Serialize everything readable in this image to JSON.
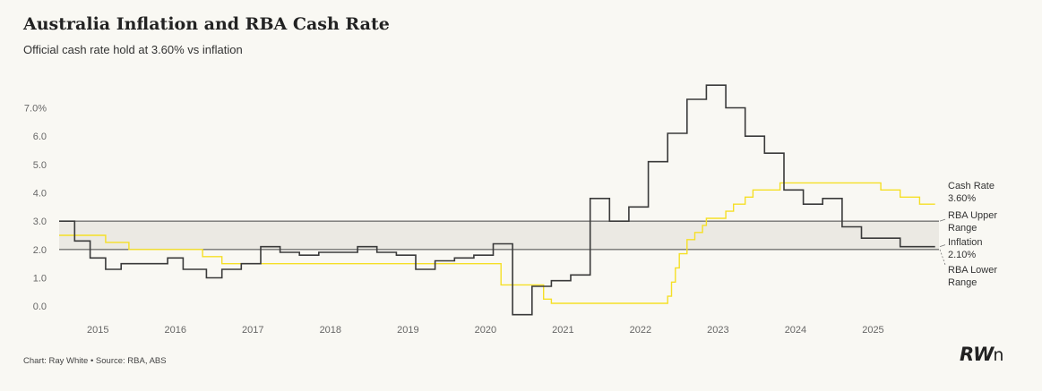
{
  "title": "Australia Inflation and RBA Cash Rate",
  "subtitle": "Official cash rate hold at 3.60% vs inflation",
  "footer": "Chart: Ray White • Source: RBA, ABS",
  "logo": {
    "main": "RW",
    "suffix": "n"
  },
  "chart_data": {
    "type": "line",
    "ylim": [
      -0.5,
      7.9
    ],
    "xlim": [
      2014.5,
      2025.85
    ],
    "y_ticks": [
      0.0,
      1.0,
      2.0,
      3.0,
      4.0,
      5.0,
      6.0,
      7.0
    ],
    "y_tick_labels": [
      "0.0",
      "1.0",
      "2.0",
      "3.0",
      "4.0",
      "5.0",
      "6.0",
      "7.0%"
    ],
    "x_ticks": [
      2015,
      2016,
      2017,
      2018,
      2019,
      2020,
      2021,
      2022,
      2023,
      2024,
      2025
    ],
    "x_tick_labels": [
      "2015",
      "2016",
      "2017",
      "2018",
      "2019",
      "2020",
      "2021",
      "2022",
      "2023",
      "2024",
      "2025"
    ],
    "grid": false,
    "band": {
      "lower": 2.0,
      "upper": 3.0,
      "color": "#ebe9e3"
    },
    "reference_lines": [
      {
        "value": 3.0,
        "label": "RBA Upper Range",
        "label_lines": [
          "RBA Upper",
          "Range"
        ]
      },
      {
        "value": 2.0,
        "label": "RBA Lower Range",
        "label_lines": [
          "RBA Lower",
          "Range"
        ]
      }
    ],
    "series": [
      {
        "name": "Cash Rate",
        "end_label": "3.60%",
        "color": "#f5df26",
        "step": true,
        "points": [
          [
            2014.5,
            2.5
          ],
          [
            2015.1,
            2.25
          ],
          [
            2015.4,
            2.0
          ],
          [
            2016.35,
            1.75
          ],
          [
            2016.6,
            1.5
          ],
          [
            2020.2,
            0.75
          ],
          [
            2020.25,
            0.75
          ],
          [
            2020.75,
            0.25
          ],
          [
            2020.85,
            0.1
          ],
          [
            2022.35,
            0.35
          ],
          [
            2022.4,
            0.85
          ],
          [
            2022.45,
            1.35
          ],
          [
            2022.5,
            1.85
          ],
          [
            2022.6,
            2.35
          ],
          [
            2022.7,
            2.6
          ],
          [
            2022.8,
            2.85
          ],
          [
            2022.85,
            3.1
          ],
          [
            2022.95,
            3.1
          ],
          [
            2023.1,
            3.35
          ],
          [
            2023.2,
            3.6
          ],
          [
            2023.35,
            3.85
          ],
          [
            2023.45,
            4.1
          ],
          [
            2023.8,
            4.35
          ],
          [
            2025.1,
            4.1
          ],
          [
            2025.35,
            3.85
          ],
          [
            2025.6,
            3.6
          ],
          [
            2025.8,
            3.6
          ]
        ]
      },
      {
        "name": "Inflation",
        "end_label": "2.10%",
        "color": "#3a3a3a",
        "step": true,
        "points": [
          [
            2014.5,
            3.0
          ],
          [
            2014.7,
            2.3
          ],
          [
            2014.9,
            1.7
          ],
          [
            2015.1,
            1.3
          ],
          [
            2015.3,
            1.5
          ],
          [
            2015.9,
            1.7
          ],
          [
            2016.1,
            1.3
          ],
          [
            2016.4,
            1.0
          ],
          [
            2016.6,
            1.3
          ],
          [
            2016.85,
            1.5
          ],
          [
            2017.1,
            2.1
          ],
          [
            2017.35,
            1.9
          ],
          [
            2017.6,
            1.8
          ],
          [
            2017.85,
            1.9
          ],
          [
            2018.35,
            2.1
          ],
          [
            2018.6,
            1.9
          ],
          [
            2018.85,
            1.8
          ],
          [
            2019.1,
            1.3
          ],
          [
            2019.35,
            1.6
          ],
          [
            2019.6,
            1.7
          ],
          [
            2019.85,
            1.8
          ],
          [
            2020.1,
            2.2
          ],
          [
            2020.35,
            -0.3
          ],
          [
            2020.6,
            0.7
          ],
          [
            2020.85,
            0.9
          ],
          [
            2021.1,
            1.1
          ],
          [
            2021.35,
            3.8
          ],
          [
            2021.6,
            3.0
          ],
          [
            2021.85,
            3.5
          ],
          [
            2022.1,
            5.1
          ],
          [
            2022.35,
            6.1
          ],
          [
            2022.6,
            7.3
          ],
          [
            2022.85,
            7.8
          ],
          [
            2023.1,
            7.0
          ],
          [
            2023.35,
            6.0
          ],
          [
            2023.6,
            5.4
          ],
          [
            2023.85,
            4.1
          ],
          [
            2024.1,
            3.6
          ],
          [
            2024.35,
            3.8
          ],
          [
            2024.6,
            2.8
          ],
          [
            2024.85,
            2.4
          ],
          [
            2025.35,
            2.1
          ],
          [
            2025.8,
            2.1
          ]
        ]
      }
    ]
  }
}
